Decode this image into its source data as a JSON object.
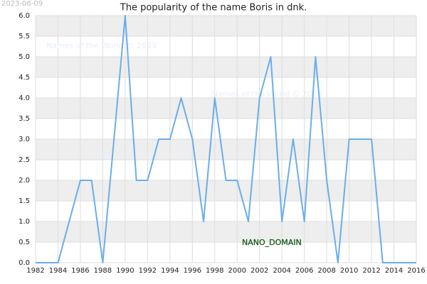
{
  "chart_data": {
    "type": "line",
    "title": "The popularity of the name Boris in dnk.",
    "date": "2023-06-09",
    "watermarks": [
      "Names of the World © 2023",
      "Names of the World © 2023",
      "Names of the World © 2023"
    ],
    "stamp": "NANO_DOMAIN",
    "x": [
      1982,
      1983,
      1984,
      1985,
      1986,
      1987,
      1988,
      1989,
      1990,
      1991,
      1992,
      1993,
      1994,
      1995,
      1996,
      1997,
      1998,
      1999,
      2000,
      2001,
      2002,
      2003,
      2004,
      2005,
      2006,
      2007,
      2008,
      2009,
      2010,
      2011,
      2012,
      2013,
      2014,
      2015,
      2016
    ],
    "values": [
      0,
      0,
      0,
      1,
      2,
      2,
      0,
      3,
      6,
      2,
      2,
      3,
      3,
      4,
      3,
      1,
      4,
      2,
      2,
      1,
      4,
      5,
      1,
      3,
      1,
      5,
      2,
      0,
      3,
      3,
      3,
      0,
      0,
      0,
      0
    ],
    "color": "#6aaeea",
    "xlim": [
      1982,
      2016
    ],
    "xticks": [
      1982,
      1984,
      1986,
      1988,
      1990,
      1992,
      1994,
      1996,
      1998,
      2000,
      2002,
      2004,
      2006,
      2008,
      2010,
      2012,
      2014,
      2016
    ],
    "ylim": [
      0,
      6
    ],
    "yticks": [
      {
        "value": 0,
        "label": "0.0"
      },
      {
        "value": 0.5,
        "label": "0.5"
      },
      {
        "value": 1,
        "label": "1.0"
      },
      {
        "value": 1.5,
        "label": "1.5"
      },
      {
        "value": 2,
        "label": "2.0"
      },
      {
        "value": 2.5,
        "label": "2.5"
      },
      {
        "value": 3,
        "label": "3.0"
      },
      {
        "value": 3.5,
        "label": "3.5"
      },
      {
        "value": 4,
        "label": "4.0"
      },
      {
        "value": 4.5,
        "label": "4.5"
      },
      {
        "value": 5,
        "label": "5.0"
      },
      {
        "value": 5.5,
        "label": "5.5"
      },
      {
        "value": 6,
        "label": "6.0"
      }
    ],
    "grid": true
  }
}
